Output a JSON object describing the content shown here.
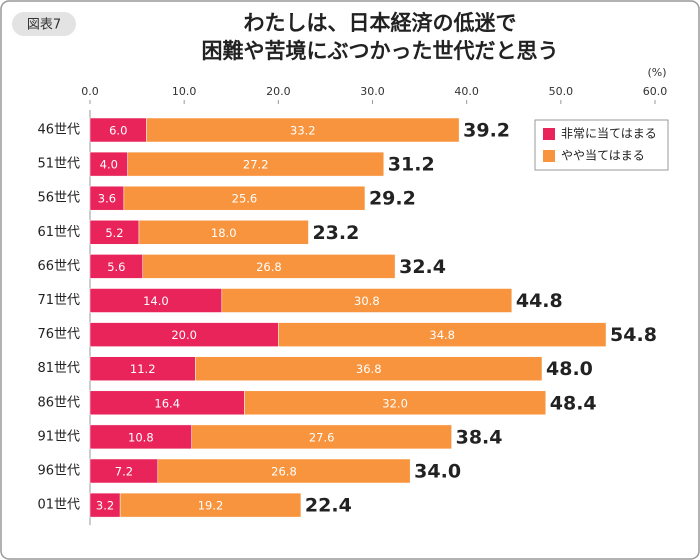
{
  "chart_data": {
    "type": "stacked-bar-horizontal",
    "figure_label": "図表7",
    "title": [
      "わたしは、日本経済の低迷で",
      "困難や苦境にぶつかった世代だと思う"
    ],
    "unit": "(%)",
    "categories": [
      "46世代",
      "51世代",
      "56世代",
      "61世代",
      "66世代",
      "71世代",
      "76世代",
      "81世代",
      "86世代",
      "91世代",
      "96世代",
      "01世代"
    ],
    "series": [
      {
        "name": "非常に当てはまる",
        "color": "#e8245a",
        "values": [
          6.0,
          4.0,
          3.6,
          5.2,
          5.6,
          14.0,
          20.0,
          11.2,
          16.4,
          10.8,
          7.2,
          3.2
        ],
        "value_labels": [
          "6.0",
          "4.0",
          "3.6",
          "5.2",
          "5.6",
          "14.0",
          "20.0",
          "11.2",
          "16.4",
          "10.8",
          "7.2",
          "3.2"
        ]
      },
      {
        "name": "やや当てはまる",
        "color": "#f7943d",
        "values": [
          33.2,
          27.2,
          25.6,
          18.0,
          26.8,
          30.8,
          34.8,
          36.8,
          32.0,
          27.6,
          26.8,
          19.2
        ],
        "value_labels": [
          "33.2",
          "27.2",
          "25.6",
          "18.0",
          "26.8",
          "30.8",
          "34.8",
          "36.8",
          "32.0",
          "27.6",
          "26.8",
          "19.2"
        ]
      }
    ],
    "totals": [
      39.2,
      31.2,
      29.2,
      23.2,
      32.4,
      44.8,
      54.8,
      48.0,
      48.4,
      38.4,
      34.0,
      22.4
    ],
    "total_labels": [
      "39.2",
      "31.2",
      "29.2",
      "23.2",
      "32.4",
      "44.8",
      "54.8",
      "48.0",
      "48.4",
      "38.4",
      "34.0",
      "22.4"
    ],
    "xlim": [
      0,
      60
    ],
    "xticks": [
      {
        "value": 0,
        "label": "0.0"
      },
      {
        "value": 10,
        "label": "10.0"
      },
      {
        "value": 20,
        "label": "20.0"
      },
      {
        "value": 30,
        "label": "30.0"
      },
      {
        "value": 40,
        "label": "40.0"
      },
      {
        "value": 50,
        "label": "50.0"
      },
      {
        "value": 60,
        "label": "60.0"
      }
    ],
    "legend": "top-right"
  }
}
